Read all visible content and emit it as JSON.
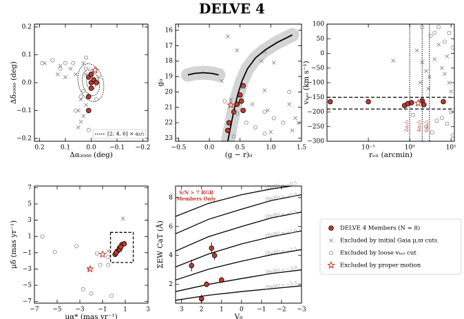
{
  "title": "DELVE 4",
  "chart_data": [
    {
      "type": "scatter",
      "xlim": [
        0.22,
        -0.22
      ],
      "ylim": [
        -0.21,
        0.21
      ],
      "xticks": [
        0.2,
        0.1,
        {
          "value": 0,
          "label": "0.0"
        },
        {
          "value": -0.1,
          "label": "−0.1"
        },
        {
          "value": -0.2,
          "label": "−0.2"
        }
      ],
      "yticks": [
        {
          "value": -0.2,
          "label": "−0.2"
        },
        {
          "value": -0.1,
          "label": "−0.1"
        },
        {
          "value": 0,
          "label": "0.0"
        },
        0.1,
        0.2
      ],
      "x_label": "Δα₂₀₀₀ (deg)",
      "y_label": "Δδ₂₀₀₀ (deg)",
      "legend_label": "[2, 4, 6] × a₁/₂",
      "series": [
        {
          "name": "DELVE 4 Members (N = 8)",
          "marker": "circle-filled",
          "color": "#c0392b",
          "x": [
            0.01,
            0.0,
            -0.01,
            0.0,
            0.01,
            -0.02,
            0.0,
            0.01
          ],
          "y": [
            0.02,
            0.0,
            0.01,
            -0.02,
            -0.05,
            0.0,
            0.03,
            -0.1
          ]
        },
        {
          "name": "Excluded by initial Gaia μ,ϖ cuts",
          "marker": "x",
          "color": "#888888",
          "x": [
            0.18,
            0.12,
            0.1,
            0.08,
            0.03,
            0.02,
            0.04,
            0.05,
            0.03,
            0.04,
            0.05,
            0.02,
            0.06,
            -0.03,
            0.13
          ],
          "y": [
            0.07,
            0.06,
            0.02,
            0.05,
            0.07,
            0.03,
            -0.06,
            -0.1,
            -0.12,
            -0.14,
            -0.16,
            -0.08,
            0.03,
            0.02,
            0.03
          ]
        },
        {
          "name": "Excluded by loose vₕₑₗ cut",
          "marker": "circle-open",
          "color": "#888888",
          "x": [
            0.19,
            0.15,
            0.1,
            0.07,
            0.02,
            0.03,
            0.04,
            0.02,
            -0.02,
            0.01,
            0.06,
            0.12
          ],
          "y": [
            0.07,
            0.08,
            0.07,
            0.07,
            0.09,
            -0.03,
            -0.05,
            0.05,
            -0.06,
            -0.17,
            -0.1,
            0.05
          ]
        },
        {
          "name": "Excluded by proper motion",
          "marker": "star",
          "color": "#c0392b",
          "x": [
            -0.015
          ],
          "y": [
            0.045
          ]
        }
      ]
    },
    {
      "type": "scatter",
      "xlim": [
        -0.55,
        1.5
      ],
      "ylim": [
        23.2,
        15.6
      ],
      "xticks": [
        {
          "value": -0.5,
          "label": "−0.5"
        },
        {
          "value": 0,
          "label": "0.0"
        },
        0.5,
        {
          "value": 1,
          "label": "1.0"
        },
        1.5
      ],
      "yticks": [
        16,
        17,
        18,
        19,
        20,
        21,
        22,
        23
      ],
      "x_label": "(g − r)₀",
      "y_label": "g₀",
      "series": [
        {
          "marker": "line",
          "band": true,
          "color": "#000000",
          "x": [
            1.35,
            1.1,
            0.9,
            0.75,
            0.62,
            0.53,
            0.46,
            0.4,
            0.35,
            0.3
          ],
          "y": [
            16.3,
            16.8,
            17.3,
            17.8,
            18.5,
            19.3,
            20.2,
            21.2,
            22.2,
            23.2
          ]
        },
        {
          "marker": "line",
          "band": true,
          "color": "#000000",
          "x": [
            -0.35,
            -0.25,
            -0.1,
            0.05,
            0.15
          ],
          "y": [
            18.9,
            18.8,
            18.75,
            18.8,
            18.9
          ]
        },
        {
          "marker": "circle-filled",
          "color": "#c0392b",
          "x": [
            0.55,
            0.5,
            0.52,
            0.45,
            0.55,
            0.4,
            0.32,
            0.3
          ],
          "y": [
            19.6,
            20.2,
            20.6,
            20.8,
            21.2,
            21.3,
            22.0,
            22.5
          ]
        },
        {
          "marker": "x",
          "color": "#888888",
          "x": [
            0.3,
            0.45,
            0.9,
            0.85,
            1.05,
            0.2,
            0.55,
            0.9,
            0.35,
            0.7,
            0.95,
            1.3,
            1.4,
            1.45,
            1.0,
            1.35
          ],
          "y": [
            16.4,
            17.3,
            17.4,
            18.0,
            18.1,
            19.3,
            19.7,
            19.9,
            20.5,
            20.8,
            21.2,
            20.8,
            21.7,
            22.0,
            22.6,
            22.5
          ]
        },
        {
          "marker": "circle-open",
          "color": "#888888",
          "x": [
            0.25,
            0.45,
            0.9,
            1.3,
            0.6,
            0.75,
            0.9,
            1.2,
            1.05,
            0.4
          ],
          "y": [
            20.6,
            21.4,
            21.3,
            20.0,
            22.0,
            22.3,
            22.7,
            22.0,
            21.7,
            22.9
          ]
        },
        {
          "marker": "star",
          "color": "#c0392b",
          "x": [
            0.35
          ],
          "y": [
            20.85
          ]
        }
      ]
    },
    {
      "type": "scatter",
      "x_log": true,
      "xlim": [
        0.01,
        12
      ],
      "ylim": [
        -300,
        100
      ],
      "xticks": [
        {
          "value": 0.1,
          "label": "10⁻¹"
        },
        {
          "value": 1,
          "label": "10⁰"
        },
        {
          "value": 10,
          "label": "10¹"
        }
      ],
      "yticks": [
        {
          "value": -300,
          "label": "−300"
        },
        {
          "value": -250,
          "label": "−250"
        },
        {
          "value": -200,
          "label": "−200"
        },
        {
          "value": -150,
          "label": "−150"
        },
        {
          "value": -100,
          "label": "−100"
        },
        {
          "value": -50,
          "label": "−50"
        },
        0,
        50,
        100
      ],
      "x_label": "rₑₗₗ (arcmin)",
      "y_label": "vₕₑₗ (km s⁻¹)",
      "vlines": [
        {
          "value": 1.0,
          "label": "2a₁/₂"
        },
        {
          "value": 2.0,
          "label": "4a₁/₂"
        },
        {
          "value": 3.0,
          "label": "6a₁/₂"
        }
      ],
      "hlines": [
        -150,
        -190
      ],
      "series": [
        {
          "marker": "circle-filled",
          "color": "#c0392b",
          "x": [
            0.012,
            0.1,
            0.75,
            0.9,
            1.1,
            2.0,
            2.2,
            6.5
          ],
          "y": [
            -165,
            -165,
            -178,
            -172,
            -168,
            -162,
            -175,
            -165
          ]
        },
        {
          "marker": "x",
          "color": "#888888",
          "x": [
            0.4,
            1.5,
            2,
            2.5,
            3,
            4,
            5,
            6,
            8,
            9,
            10,
            2.8,
            7,
            1.8
          ],
          "y": [
            -25,
            10,
            -30,
            -60,
            -80,
            -20,
            30,
            -50,
            -10,
            -100,
            -130,
            -120,
            -70,
            -100
          ]
        },
        {
          "marker": "circle-open",
          "color": "#888888",
          "x": [
            2.0,
            3.2,
            4,
            5,
            7,
            9,
            11,
            6,
            8,
            10,
            4.5,
            1.2,
            2.5,
            3.5,
            11
          ],
          "y": [
            90,
            60,
            70,
            90,
            40,
            70,
            20,
            -220,
            -240,
            -200,
            -230,
            -210,
            -250,
            -270,
            -280
          ]
        },
        {
          "marker": "star",
          "color": "#c0392b",
          "x": [
            1.6
          ],
          "y": [
            -170
          ]
        }
      ]
    },
    {
      "type": "scatter",
      "xlim": [
        -7,
        3
      ],
      "ylim": [
        -7.2,
        7.2
      ],
      "xticks": [
        {
          "value": -7,
          "label": "−7"
        },
        {
          "value": -5,
          "label": "−5"
        },
        {
          "value": -3,
          "label": "−3"
        },
        {
          "value": -1,
          "label": "−1"
        },
        1,
        3
      ],
      "yticks": [
        {
          "value": -7,
          "label": "−7"
        },
        {
          "value": -5,
          "label": "−5"
        },
        {
          "value": -3,
          "label": "−3"
        },
        {
          "value": -1,
          "label": "−1"
        },
        1,
        3,
        5,
        7
      ],
      "x_label": "μα* (mas yr⁻¹)",
      "y_label": "μδ (mas yr⁻¹)",
      "box": {
        "x": [
          -0.3,
          1.7
        ],
        "y": [
          -2.2,
          1.5
        ]
      },
      "series": [
        {
          "marker": "circle-filled",
          "color": "#c0392b",
          "x": [
            0.1,
            0.3,
            0.5,
            0.7,
            0.9,
            0.5,
            0.2,
            0.6
          ],
          "y": [
            -1.2,
            -0.8,
            -0.4,
            0,
            0.1,
            -0.6,
            -1.0,
            -0.3
          ]
        },
        {
          "marker": "x",
          "color": "#888888",
          "x": [
            0.8,
            -2.2,
            -0.5
          ],
          "y": [
            3.2,
            -3.0,
            -0.8
          ]
        },
        {
          "marker": "circle-open",
          "color": "#888888",
          "x": [
            -6.3,
            -5.2,
            -3.3,
            -2.7,
            -2.0,
            -0.2,
            -1.5,
            -1.2,
            -0.5,
            -0.5
          ],
          "y": [
            1.0,
            -0.9,
            -0.2,
            -5.5,
            -6.0,
            -6.3,
            -1.1,
            -2.5,
            -2.5,
            -1.5
          ]
        },
        {
          "marker": "star",
          "color": "#c0392b",
          "x": [
            -1.0,
            -2.1
          ],
          "y": [
            -1.2,
            -3.0
          ]
        }
      ]
    },
    {
      "type": "scatter",
      "xlim": [
        3.3,
        -3.0
      ],
      "ylim": [
        0.7,
        8.8
      ],
      "xticks": [
        3,
        2,
        1,
        0,
        {
          "value": -1,
          "label": "−1"
        },
        {
          "value": -2,
          "label": "−2"
        },
        {
          "value": -3,
          "label": "−3"
        }
      ],
      "yticks": [
        2,
        4,
        6,
        8
      ],
      "x_label": "V₀",
      "y_label": "ΣEW CaT (Å)",
      "annotation": [
        "S/N > 7 RGB",
        "Members Only"
      ],
      "series": [
        {
          "name": "[Fe/H] = −0.5",
          "marker": "line",
          "color": "#000000",
          "x": [
            3.3,
            1.65,
            0,
            -1.5,
            -3
          ],
          "y": [
            6.7,
            7.6,
            8.2,
            8.6,
            8.9
          ]
        },
        {
          "name": "[Fe/H] = −1.0",
          "marker": "line",
          "color": "#000000",
          "x": [
            3.3,
            1.65,
            0,
            -1.5,
            -3
          ],
          "y": [
            5.5,
            6.5,
            7.2,
            7.8,
            8.2
          ]
        },
        {
          "name": "[Fe/H] = −1.5",
          "marker": "line",
          "color": "#000000",
          "x": [
            3.3,
            1.65,
            0,
            -1.5,
            -3
          ],
          "y": [
            4.3,
            5.3,
            6.0,
            6.6,
            7.0
          ]
        },
        {
          "name": "[Fe/H] = −2.0",
          "marker": "line",
          "color": "#000000",
          "x": [
            3.3,
            1.65,
            0,
            -1.5,
            -3
          ],
          "y": [
            3.2,
            4.1,
            4.8,
            5.3,
            5.7
          ]
        },
        {
          "name": "[Fe/H] = −2.5",
          "marker": "line",
          "color": "#000000",
          "x": [
            3.3,
            1.65,
            0,
            -1.5,
            -3
          ],
          "y": [
            2.3,
            3.05,
            3.6,
            4.05,
            4.4
          ]
        },
        {
          "name": "[Fe/H] = −3.0",
          "marker": "line",
          "color": "#000000",
          "x": [
            3.3,
            1.65,
            0,
            -1.5,
            -3
          ],
          "y": [
            1.5,
            2.0,
            2.4,
            2.75,
            3.0
          ]
        },
        {
          "name": "[Fe/H] = −3.5",
          "marker": "line",
          "color": "#000000",
          "x": [
            3.3,
            1.65,
            0,
            -1.5,
            -3
          ],
          "y": [
            0.9,
            1.25,
            1.5,
            1.7,
            1.9
          ]
        },
        {
          "marker": "circle-filled",
          "color": "#c0392b",
          "x": [
            2.0,
            1.75,
            1.0,
            2.5,
            1.5,
            1.35
          ],
          "y": [
            1.0,
            2.0,
            2.3,
            3.3,
            4.5,
            4.0
          ],
          "errors": [
            0.3,
            0.2,
            0.2,
            0.4,
            0.4,
            0.3
          ]
        }
      ]
    }
  ]
}
